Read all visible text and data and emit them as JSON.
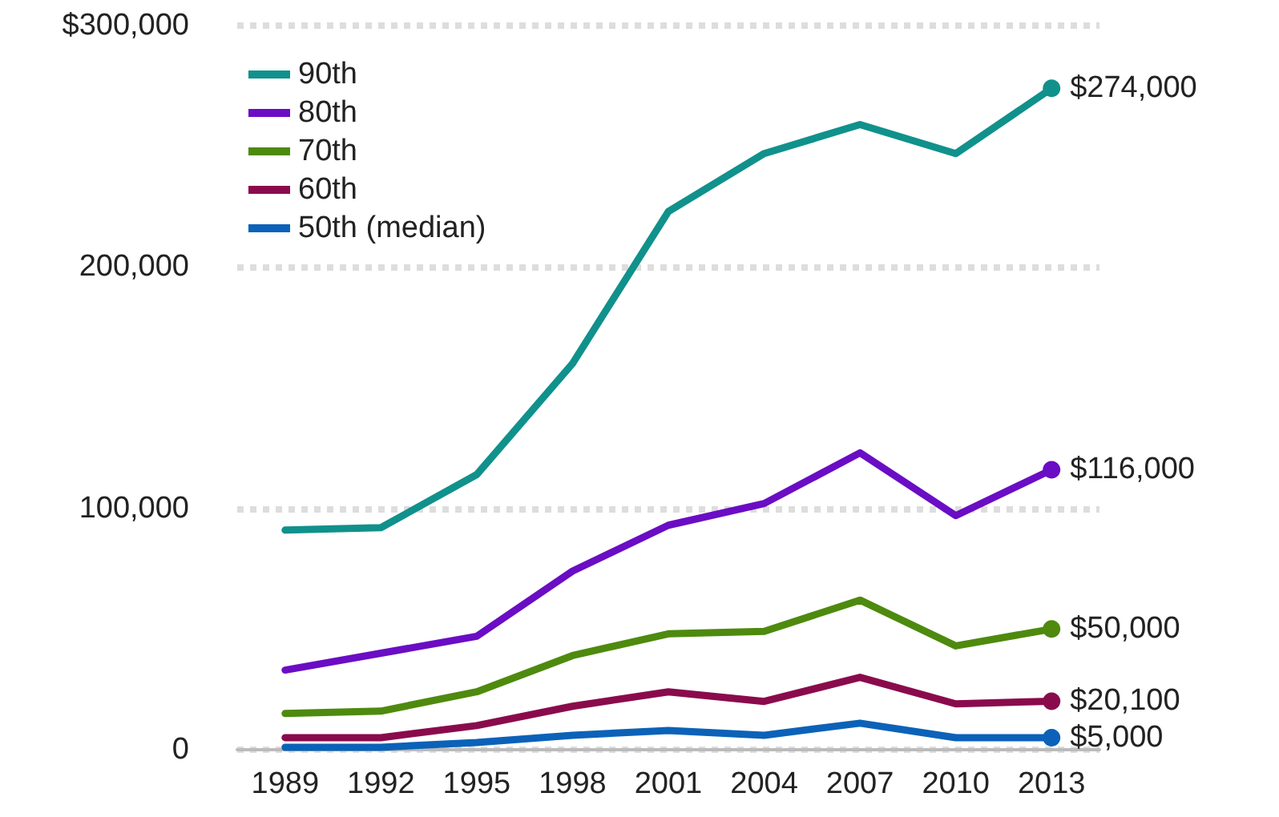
{
  "chart_data": {
    "type": "line",
    "categories": [
      "1989",
      "1992",
      "1995",
      "1998",
      "2001",
      "2004",
      "2007",
      "2010",
      "2013"
    ],
    "ylim": [
      0,
      300000
    ],
    "yticks": [
      0,
      {
        "value": 100000,
        "label": "100,000"
      },
      {
        "value": 200000,
        "label": "200,000"
      },
      {
        "value": 300000,
        "label": "$300,000"
      }
    ],
    "grid": "y",
    "legend": "top left",
    "marker": "none",
    "series": [
      {
        "name": "90th",
        "color": "#10918c",
        "values": [
          91000,
          92000,
          114000,
          160000,
          223000,
          247000,
          259000,
          247000,
          274000
        ],
        "value_labels": [
          null,
          null,
          null,
          null,
          null,
          null,
          null,
          null,
          "$274,000"
        ]
      },
      {
        "name": "80th",
        "color": "#6a0dc4",
        "values": [
          33000,
          40000,
          47000,
          74000,
          93000,
          102000,
          123000,
          97000,
          116000
        ],
        "value_labels": [
          null,
          null,
          null,
          null,
          null,
          null,
          null,
          null,
          "$116,000"
        ]
      },
      {
        "name": "70th",
        "color": "#4e8a0e",
        "values": [
          15000,
          16000,
          24000,
          39000,
          48000,
          49000,
          62000,
          43000,
          50000
        ],
        "value_labels": [
          null,
          null,
          null,
          null,
          null,
          null,
          null,
          null,
          "$50,000"
        ]
      },
      {
        "name": "60th",
        "color": "#8a0b4c",
        "values": [
          5000,
          5000,
          10000,
          18000,
          24000,
          20000,
          30000,
          19000,
          20100
        ],
        "value_labels": [
          null,
          null,
          null,
          null,
          null,
          null,
          null,
          null,
          "$20,100"
        ]
      },
      {
        "name": "50th (median)",
        "color": "#0b62b8",
        "values": [
          1000,
          1000,
          3000,
          6000,
          8000,
          6000,
          11000,
          5000,
          5000
        ],
        "value_labels": [
          null,
          null,
          null,
          null,
          null,
          null,
          null,
          null,
          "$5,000"
        ]
      }
    ]
  }
}
